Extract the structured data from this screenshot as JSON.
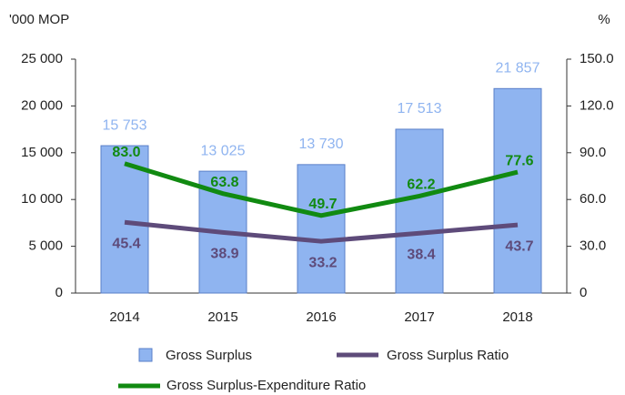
{
  "chart_data": {
    "type": "bar",
    "y_label": "'000 MOP",
    "y2_label": "%",
    "categories": [
      "2014",
      "2015",
      "2016",
      "2017",
      "2018"
    ],
    "series": [
      {
        "name": "Gross Surplus",
        "type": "bar",
        "color": "#8fb4f0",
        "label_color": "#8fb4f0",
        "values": [
          15753,
          13025,
          13730,
          17513,
          21857
        ],
        "value_labels": [
          "15 753",
          "13 025",
          "13 730",
          "17 513",
          "21 857"
        ]
      },
      {
        "name": "Gross Surplus Ratio",
        "type": "line",
        "axis": "y2",
        "color": "#5e4b7a",
        "label_color": "#5e4b7a",
        "values": [
          45.4,
          38.9,
          33.2,
          38.4,
          43.7
        ]
      },
      {
        "name": "Gross Surplus-Expenditure Ratio",
        "type": "line",
        "axis": "y2",
        "color": "#118a11",
        "label_color": "#118a11",
        "values": [
          83.0,
          63.8,
          49.7,
          62.2,
          77.6
        ],
        "value_labels": [
          "83.0",
          "63.8",
          "49.7",
          "62.2",
          "77.6"
        ]
      }
    ],
    "ylim": [
      0,
      25000
    ],
    "yticks": [
      0,
      {
        "value": 5000,
        "label": "5 000"
      },
      {
        "value": 10000,
        "label": "10 000"
      },
      {
        "value": 15000,
        "label": "15 000"
      },
      {
        "value": 20000,
        "label": "20 000"
      },
      {
        "value": 25000,
        "label": "25 000"
      }
    ],
    "y2lim": [
      0,
      150
    ],
    "y2ticks": [
      0,
      {
        "value": 30,
        "label": "30.0"
      },
      {
        "value": 60,
        "label": "60.0"
      },
      {
        "value": 90,
        "label": "90.0"
      },
      {
        "value": 120,
        "label": "120.0"
      },
      {
        "value": 150,
        "label": "150.0"
      }
    ]
  }
}
